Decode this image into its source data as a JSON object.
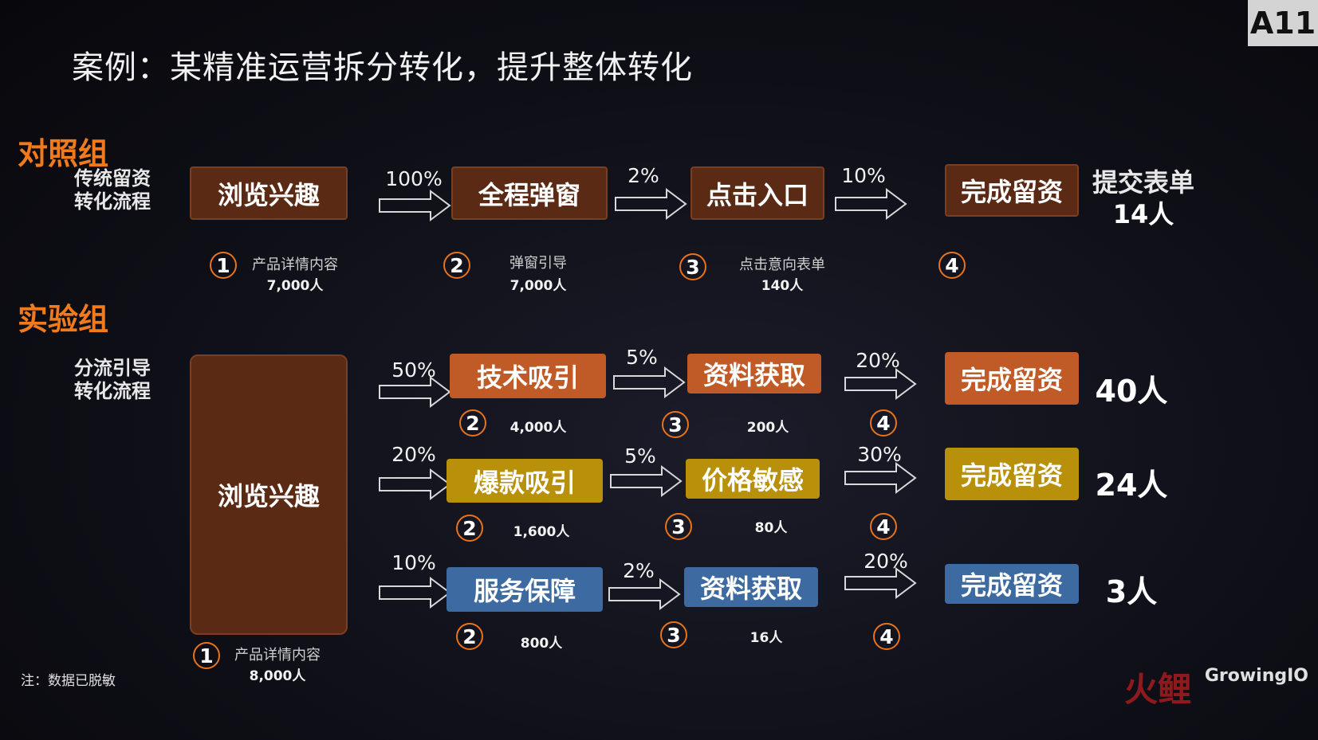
{
  "title": "案例：某精准运营拆分转化，提升整体转化",
  "tag": "A11",
  "control": {
    "label": "对照组",
    "sublabel": "传统留资转化流程",
    "boxes": [
      "浏览兴趣",
      "全程弹窗",
      "点击入口",
      "完成留资"
    ],
    "rates": [
      "100%",
      "2%",
      "10%"
    ],
    "steps": [
      "1",
      "2",
      "3",
      "4"
    ],
    "notes": [
      {
        "name": "产品详情内容",
        "count": "7,000人"
      },
      {
        "name": "弹窗引导",
        "count": "7,000人"
      },
      {
        "name": "点击意向表单",
        "count": "140人"
      }
    ],
    "result_label": "提交表单",
    "result": "14人"
  },
  "experiment": {
    "label": "实验组",
    "sublabel": "分流引导转化流程",
    "source_box": "浏览兴趣",
    "source_step": "1",
    "source_note": {
      "name": "产品详情内容",
      "count": "8,000人"
    },
    "rows": [
      {
        "rate1": "50%",
        "box1": "技术吸引",
        "count1": "4,000人",
        "rate2": "5%",
        "box2": "资料获取",
        "count2": "200人",
        "rate3": "20%",
        "final": "完成留资",
        "result": "40人",
        "color": "#c05a26"
      },
      {
        "rate1": "20%",
        "box1": "爆款吸引",
        "count1": "1,600人",
        "rate2": "5%",
        "box2": "价格敏感",
        "count2": "80人",
        "rate3": "30%",
        "final": "完成留资",
        "result": "24人",
        "color": "#b8900a"
      },
      {
        "rate1": "10%",
        "box1": "服务保障",
        "count1": "800人",
        "rate2": "2%",
        "box2": "资料获取",
        "count2": "16人",
        "rate3": "20%",
        "final": "完成留资",
        "result": "3人",
        "color": "#3d6aa0"
      }
    ],
    "step_labels": [
      "2",
      "3",
      "4"
    ]
  },
  "footnote": "注：数据已脱敏",
  "logo": "GrowingIO",
  "watermark": "火鲤"
}
